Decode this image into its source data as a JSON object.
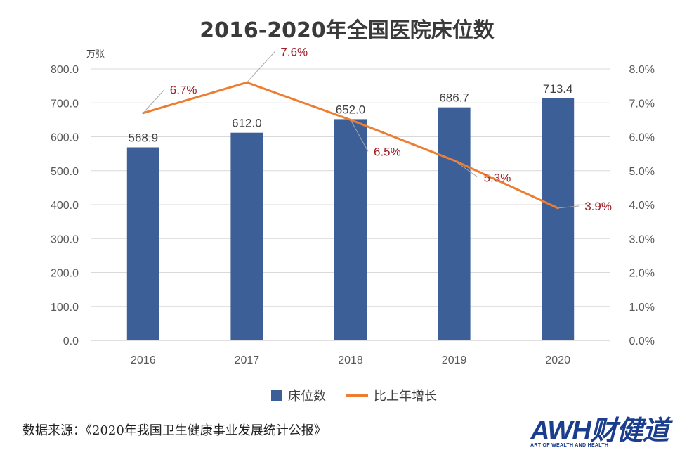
{
  "chart_data": {
    "type": "bar",
    "title": "2016-2020年全国医院床位数",
    "left_unit": "万张",
    "categories": [
      "2016",
      "2017",
      "2018",
      "2019",
      "2020"
    ],
    "series": [
      {
        "name": "床位数",
        "kind": "bar",
        "axis": "left",
        "color": "#3d5f98",
        "values": [
          568.9,
          612.0,
          652.0,
          686.7,
          713.4
        ],
        "labels": [
          "568.9",
          "612.0",
          "652.0",
          "686.7",
          "713.4"
        ]
      },
      {
        "name": "比上年增长",
        "kind": "line",
        "axis": "right",
        "color": "#ec7d31",
        "values": [
          6.7,
          7.6,
          6.5,
          5.3,
          3.9
        ],
        "labels": [
          "6.7%",
          "7.6%",
          "6.5%",
          "5.3%",
          "3.9%"
        ]
      }
    ],
    "ylim_left": [
      0,
      800
    ],
    "ylim_right": [
      0,
      8
    ],
    "left_ticks": [
      "0.0",
      "100.0",
      "200.0",
      "300.0",
      "400.0",
      "500.0",
      "600.0",
      "700.0",
      "800.0"
    ],
    "right_ticks": [
      "0.0%",
      "1.0%",
      "2.0%",
      "3.0%",
      "4.0%",
      "5.0%",
      "6.0%",
      "7.0%",
      "8.0%"
    ],
    "grid": true,
    "legend_position": "bottom-center"
  },
  "source_text": "数据来源：《2020年我国卫生健康事业发展统计公报》",
  "logo": {
    "text": "AWH财健道",
    "subtitle": "ART OF WEALTH AND HEALTH",
    "color": "#1b3d8e"
  }
}
